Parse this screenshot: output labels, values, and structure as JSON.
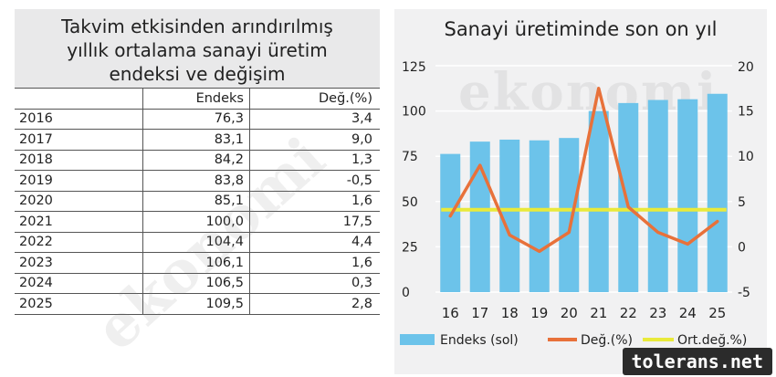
{
  "table": {
    "title_lines": [
      "Takvim etkisinden arındırılmış",
      "yıllık ortalama sanayi üretim",
      "endeksi ve değişim"
    ],
    "headers": [
      "",
      "Endeks",
      "Değ.(%)"
    ],
    "rows": [
      [
        "2016",
        "76,3",
        "3,4"
      ],
      [
        "2017",
        "83,1",
        "9,0"
      ],
      [
        "2018",
        "84,2",
        "1,3"
      ],
      [
        "2019",
        "83,8",
        "-0,5"
      ],
      [
        "2020",
        "85,1",
        "1,6"
      ],
      [
        "2021",
        "100,0",
        "17,5"
      ],
      [
        "2022",
        "104,4",
        "4,4"
      ],
      [
        "2023",
        "106,1",
        "1,6"
      ],
      [
        "2024",
        "106,5",
        "0,3"
      ],
      [
        "2025",
        "109,5",
        "2,8"
      ]
    ]
  },
  "chart_data": {
    "type": "bar",
    "title": "Sanayi üretiminde son on yıl",
    "categories": [
      "16",
      "17",
      "18",
      "19",
      "20",
      "21",
      "22",
      "23",
      "24",
      "25"
    ],
    "series": [
      {
        "name": "Endeks (sol)",
        "type": "bar",
        "axis": "left",
        "color": "#6cc3ea",
        "values": [
          76.3,
          83.1,
          84.2,
          83.8,
          85.1,
          100.0,
          104.4,
          106.1,
          106.5,
          109.5
        ]
      },
      {
        "name": "Değ.(%)",
        "type": "line",
        "axis": "right",
        "color": "#e8713a",
        "values": [
          3.4,
          9.0,
          1.3,
          -0.5,
          1.6,
          17.5,
          4.4,
          1.6,
          0.3,
          2.8
        ]
      },
      {
        "name": "Ort.değ.%)",
        "type": "line",
        "axis": "right",
        "color": "#e9ea3a",
        "values": [
          4.1,
          4.1,
          4.1,
          4.1,
          4.1,
          4.1,
          4.1,
          4.1,
          4.1,
          4.1
        ]
      }
    ],
    "y_left": {
      "ticks": [
        "125",
        "100",
        "75",
        "50",
        "25",
        "0"
      ],
      "lim": [
        0,
        125
      ]
    },
    "y_right": {
      "ticks": [
        "20",
        "15",
        "10",
        "5",
        "0",
        "-5"
      ],
      "lim": [
        -5,
        20
      ]
    },
    "grid": "horizontal",
    "legend": "bottom"
  },
  "watermarks": {
    "chart": "ekonomi",
    "table": "ekonomi"
  },
  "footer": {
    "brand": "tolerans.net"
  }
}
